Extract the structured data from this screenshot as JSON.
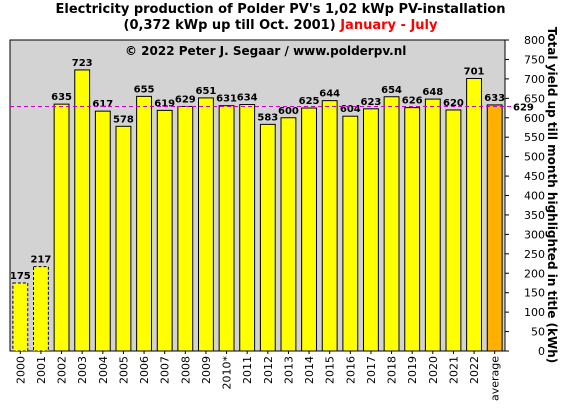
{
  "title": {
    "line1": "Electricity production  of Polder PV's 1,02 kWp PV-installation",
    "line2_prefix": "(0,372 kWp up till Oct. 2001)",
    "line2_highlight": "January - July"
  },
  "colors": {
    "plot_bg": "#d3d3d3",
    "bar": "#ffff00",
    "average_bar": "#ffb000",
    "reference_line": "#cc00cc",
    "average_label": "#ff0000",
    "reference_label": "#cc00cc",
    "title_highlight": "#ff0000"
  },
  "chart_data": {
    "type": "bar",
    "copyright": "© 2022 Peter J. Segaar / www.polderpv.nl",
    "ylabel": "Total yield up till month highlighted in title (kWh)",
    "ylim": [
      0,
      800
    ],
    "ytick_step": 50,
    "y_axis_position": "right",
    "grid": false,
    "categories": [
      "2000",
      "2001",
      "2002",
      "2003",
      "2004",
      "2005",
      "2006",
      "2007",
      "2008",
      "2009",
      "2010*",
      "2011",
      "2012",
      "2013",
      "2014",
      "2015",
      "2016",
      "2017",
      "2018",
      "2019",
      "2020",
      "2021",
      "2022",
      "average"
    ],
    "values": [
      175,
      217,
      635,
      723,
      617,
      578,
      655,
      619,
      629,
      651,
      631,
      634,
      583,
      600,
      625,
      644,
      604,
      623,
      654,
      626,
      648,
      620,
      701,
      633
    ],
    "value_labels": [
      "175",
      "217",
      "635",
      "723",
      "617",
      "578",
      "655",
      "619",
      "629",
      "651",
      "631",
      "634",
      "583",
      "600",
      "625",
      "644",
      "604",
      "623",
      "654",
      "626",
      "648",
      "620",
      "701",
      "633"
    ],
    "dashed_outline_categories": [
      "2000",
      "2001"
    ],
    "reference_line": {
      "value": 629,
      "label": "629",
      "style": "dashed"
    }
  }
}
